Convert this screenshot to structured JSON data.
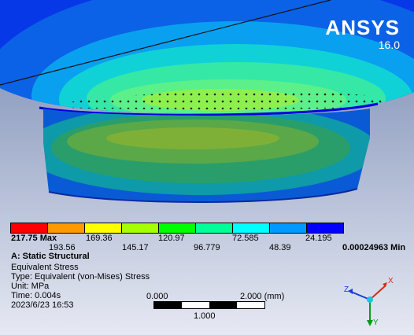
{
  "brand": {
    "name": "ANSYS",
    "version": "16.0"
  },
  "legend": {
    "colors": [
      "#ff0000",
      "#ff9900",
      "#ffff00",
      "#a6ff00",
      "#00ff00",
      "#00ff99",
      "#00ffff",
      "#0099ff",
      "#0000ff"
    ],
    "max_label": "217.75 Max",
    "min_label": "0.00024963 Min",
    "upper_values": [
      "169.36",
      "120.97",
      "72.585",
      "24.195"
    ],
    "lower_values": [
      "193.56",
      "145.17",
      "96.779",
      "48.39"
    ]
  },
  "info": {
    "title": "A: Static Structural",
    "result": "Equivalent Stress",
    "type": "Type: Equivalent (von-Mises) Stress",
    "unit": "Unit: MPa",
    "time": "Time: 0.004s",
    "date": "2023/6/23 16:53"
  },
  "scale": {
    "left": "0.000",
    "right": "2.000 (mm)",
    "middle": "1.000"
  },
  "triad": {
    "x": "X",
    "y": "Y",
    "z": "Z"
  }
}
